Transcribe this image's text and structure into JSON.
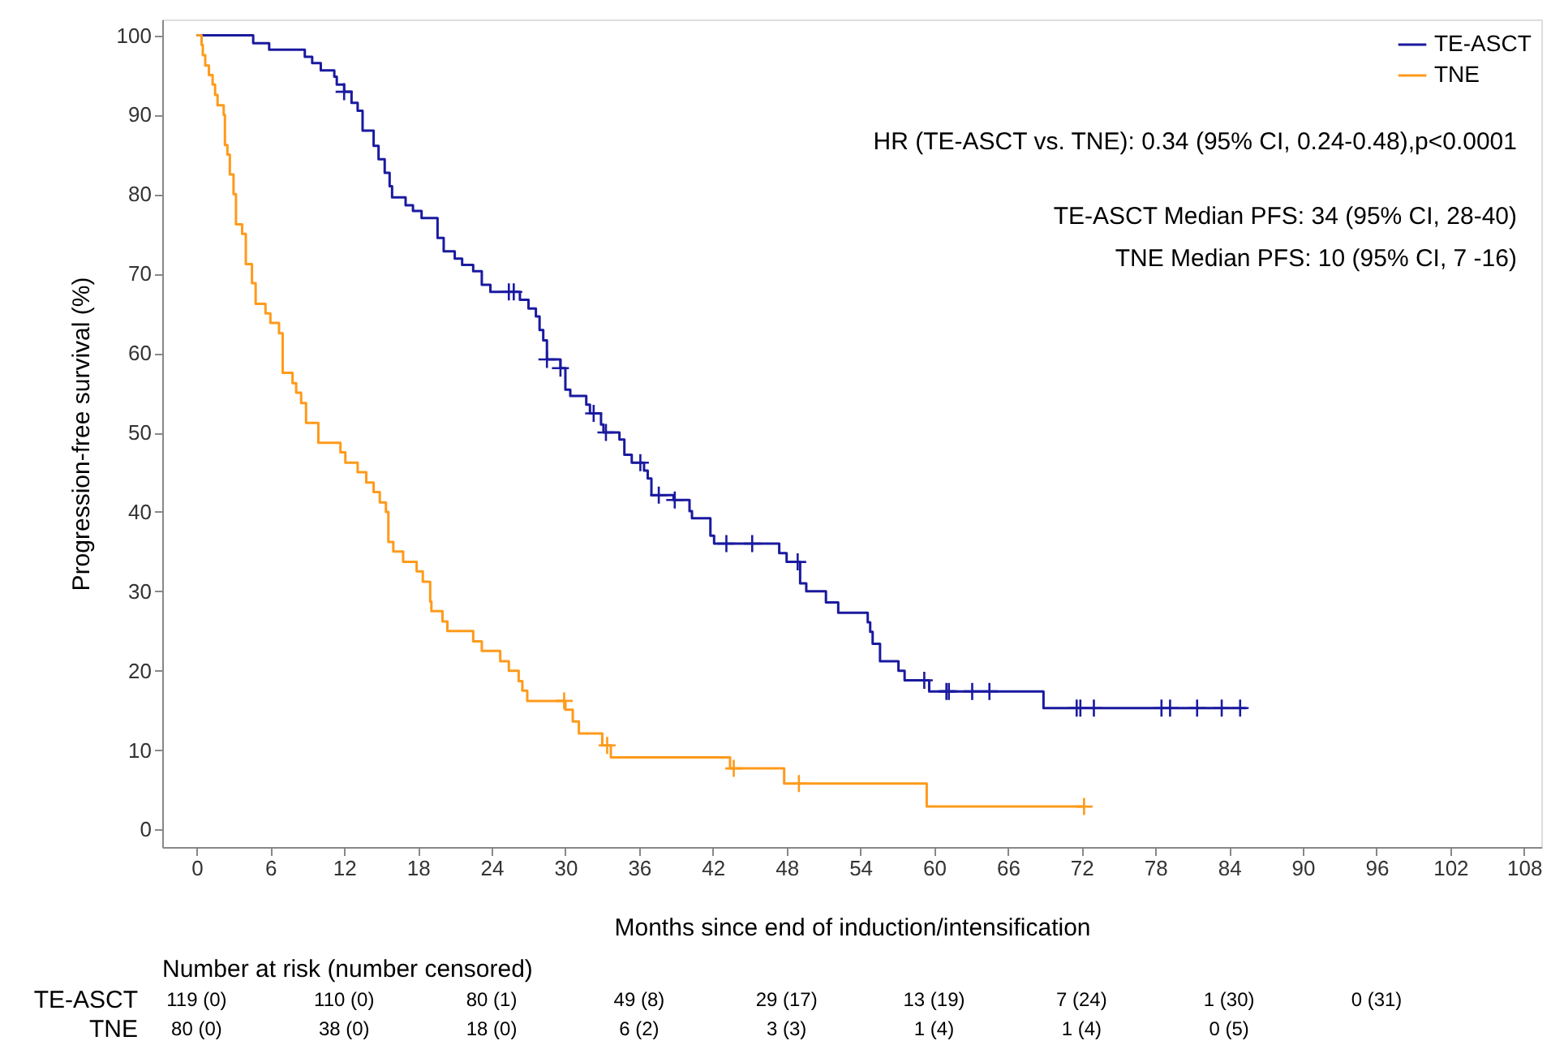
{
  "chart_data": {
    "type": "step",
    "xlabel": "Months since end of induction/intensification",
    "ylabel": "Progression-free survival (%)",
    "xlim": [
      -2.8,
      109.4
    ],
    "ylim": [
      -2.2,
      102
    ],
    "xticks": [
      0,
      6,
      12,
      18,
      24,
      30,
      36,
      42,
      48,
      54,
      60,
      66,
      72,
      78,
      84,
      90,
      96,
      102,
      108
    ],
    "yticks": [
      0,
      10,
      20,
      30,
      40,
      50,
      60,
      70,
      80,
      90,
      100
    ],
    "grid": false,
    "legend": "top right",
    "line_style": "solid",
    "series": [
      {
        "name": "TE-ASCT",
        "color": "#1a1aa0",
        "x": [
          0,
          4.6,
          5.9,
          8.8,
          9.4,
          10.1,
          11.2,
          11.4,
          12.0,
          12.6,
          13.1,
          13.5,
          14.4,
          14.8,
          15.3,
          15.7,
          15.9,
          17.0,
          17.6,
          18.3,
          19.6,
          20.1,
          21.0,
          21.6,
          22.5,
          23.2,
          23.9,
          26.3,
          27.0,
          27.6,
          27.9,
          28.2,
          28.5,
          29.6,
          30.0,
          30.4,
          31.7,
          32.0,
          32.9,
          33.1,
          34.4,
          34.8,
          35.4,
          36.4,
          36.7,
          37.0,
          38.8,
          40.1,
          40.3,
          41.8,
          42.1,
          47.4,
          48.0,
          49.1,
          49.6,
          51.2,
          52.2,
          54.6,
          54.8,
          55.0,
          55.6,
          57.1,
          57.6,
          59.6,
          68.9,
          85.4
        ],
        "values": [
          100,
          99.0,
          98.2,
          97.3,
          96.5,
          95.6,
          94.8,
          93.8,
          92.9,
          91.5,
          90.5,
          88.0,
          86.1,
          84.4,
          82.7,
          81.0,
          79.6,
          78.6,
          77.9,
          77.0,
          74.5,
          72.8,
          71.9,
          71.1,
          70.3,
          68.6,
          67.7,
          66.7,
          65.6,
          64.6,
          62.9,
          61.6,
          59.2,
          58.1,
          55.4,
          54.6,
          53.5,
          52.4,
          51.0,
          50.0,
          49.1,
          47.2,
          46.2,
          45.2,
          44.2,
          42.1,
          41.5,
          40.1,
          39.2,
          37.0,
          36.0,
          34.8,
          33.7,
          31.0,
          30.0,
          28.6,
          27.3,
          26.1,
          24.9,
          23.4,
          21.2,
          20.0,
          18.8,
          17.4,
          15.3,
          15.3
        ]
      },
      {
        "name": "TNE",
        "color": "#ff9a1a",
        "x": [
          0,
          0.4,
          0.5,
          0.7,
          1.0,
          1.3,
          1.5,
          1.7,
          2.2,
          2.3,
          2.5,
          2.7,
          3.0,
          3.2,
          3.7,
          4.0,
          4.5,
          4.8,
          5.6,
          6.0,
          6.7,
          7.0,
          7.8,
          8.1,
          8.5,
          8.9,
          9.9,
          11.7,
          12.1,
          13.1,
          13.8,
          14.4,
          14.9,
          15.4,
          15.6,
          16.0,
          16.8,
          17.9,
          18.4,
          19.0,
          19.1,
          20.0,
          20.4,
          22.5,
          23.2,
          24.7,
          25.4,
          26.2,
          26.5,
          26.9,
          30.0,
          30.6,
          31.1,
          33.0,
          33.7,
          43.4,
          47.8,
          59.4,
          72.2
        ],
        "values": [
          100,
          98.8,
          97.5,
          96.2,
          95.0,
          93.8,
          92.5,
          91.2,
          90.0,
          86.2,
          85.0,
          82.5,
          80.0,
          76.2,
          75.0,
          71.2,
          68.8,
          66.2,
          65.0,
          63.8,
          62.5,
          57.5,
          56.2,
          55.0,
          53.7,
          51.2,
          48.7,
          47.5,
          46.2,
          45.0,
          43.7,
          42.5,
          41.2,
          40.0,
          36.2,
          35.0,
          33.7,
          32.5,
          31.2,
          28.7,
          27.5,
          26.2,
          25.0,
          23.7,
          22.5,
          21.2,
          20.0,
          18.7,
          17.5,
          16.2,
          15.1,
          13.6,
          12.1,
          10.6,
          9.1,
          7.7,
          5.8,
          2.9,
          2.9
        ]
      },
      {
        "color": "#1a1aa0",
        "type": "scatter",
        "marker": "cross",
        "x": [
          12.0,
          25.4,
          25.8,
          28.5,
          29.6,
          32.3,
          33.3,
          36.1,
          37.6,
          38.9,
          43.1,
          45.2,
          48.9,
          59.2,
          61.0,
          61.2,
          63.1,
          64.5,
          71.6,
          71.9,
          73.0,
          78.5,
          79.2,
          81.4,
          83.4,
          84.9
        ],
        "values": [
          92.9,
          67.7,
          67.7,
          59.2,
          58.1,
          52.4,
          50.0,
          46.2,
          42.1,
          41.5,
          36.0,
          36.0,
          33.7,
          18.8,
          17.4,
          17.4,
          17.4,
          17.4,
          15.3,
          15.3,
          15.3,
          15.3,
          15.3,
          15.3,
          15.3,
          15.3
        ]
      },
      {
        "color": "#ff9a1a",
        "type": "scatter",
        "marker": "cross",
        "x": [
          29.9,
          33.4,
          43.7,
          49.0,
          72.2
        ],
        "values": [
          16.2,
          10.6,
          7.7,
          5.8,
          2.9
        ]
      }
    ],
    "annotations": [
      "HR (TE-ASCT vs. TNE): 0.34 (95% CI, 0.24-0.48),p<0.0001",
      "TE-ASCT Median PFS: 34 (95% CI, 28-40)",
      "TNE Median PFS: 10 (95% CI, 7 -16)",
      "Number at risk (number censored)",
      "TE-ASCT",
      "119 (0)",
      "110 (0)",
      "80 (1)",
      "49 (8)",
      "29 (17)",
      "13 (19)",
      "7 (24)",
      "1 (30)",
      "0 (31)",
      "TNE",
      "80 (0)",
      "38 (0)",
      "18 (0)",
      "6 (2)",
      "3 (3)",
      "1 (4)",
      "1 (4)",
      "0 (5)"
    ]
  }
}
